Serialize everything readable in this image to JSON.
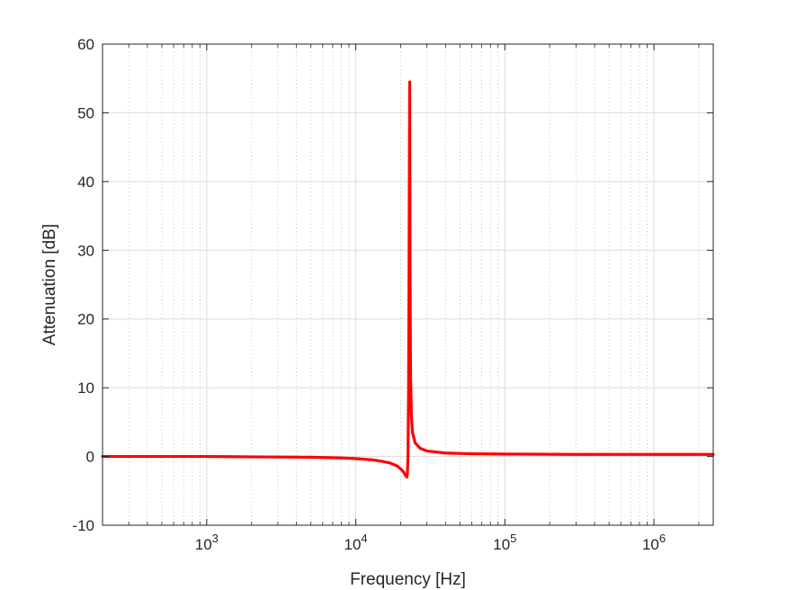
{
  "chart_data": {
    "type": "line",
    "xscale": "log",
    "xlabel": "Frequency [Hz]",
    "ylabel": "Attenuation [dB]",
    "xlim": [
      200,
      2500000
    ],
    "ylim": [
      -10,
      60
    ],
    "x_tick_values": [
      1000,
      10000,
      100000,
      1000000
    ],
    "x_tick_labels": [
      {
        "base": "10",
        "exp": "3"
      },
      {
        "base": "10",
        "exp": "4"
      },
      {
        "base": "10",
        "exp": "5"
      },
      {
        "base": "10",
        "exp": "6"
      }
    ],
    "y_ticks": [
      -10,
      0,
      10,
      20,
      30,
      40,
      50,
      60
    ],
    "grid": true,
    "minor_grid": true,
    "series": [
      {
        "color": "#ff0000",
        "x": [
          200,
          500,
          1000,
          2000,
          5000,
          8000,
          10000,
          13000,
          15000,
          17000,
          19000,
          20000,
          21000,
          21500,
          22000,
          22200,
          22400,
          22600,
          22750,
          22900,
          23000,
          23100,
          23300,
          23600,
          24000,
          25000,
          27000,
          30000,
          40000,
          60000,
          100000,
          300000,
          1000000,
          2500000
        ],
        "y": [
          0.0,
          0.0,
          0.0,
          -0.05,
          -0.1,
          -0.2,
          -0.3,
          -0.5,
          -0.7,
          -0.95,
          -1.4,
          -1.8,
          -2.3,
          -2.7,
          -3.0,
          -2.5,
          0.0,
          10.0,
          25.0,
          45.0,
          54.5,
          30.0,
          12.0,
          6.0,
          3.5,
          2.0,
          1.2,
          0.8,
          0.5,
          0.4,
          0.35,
          0.3,
          0.3,
          0.3
        ]
      }
    ]
  }
}
